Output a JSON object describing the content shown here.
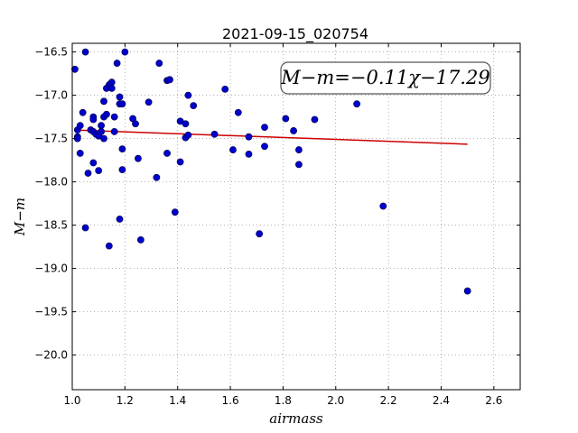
{
  "chart_data": {
    "type": "scatter",
    "title": "2021-09-15_020754",
    "xlabel": "airmass",
    "ylabel": "M−m",
    "annotation": "M−m=−0.11χ−17.29",
    "xlim": [
      1.0,
      2.7
    ],
    "ylim": [
      -20.4,
      -16.4
    ],
    "x_ticks": [
      1.0,
      1.2,
      1.4,
      1.6,
      1.8,
      2.0,
      2.2,
      2.4,
      2.6
    ],
    "x_tick_labels": [
      "1.0",
      "1.2",
      "1.4",
      "1.6",
      "1.8",
      "2.0",
      "2.2",
      "2.4",
      "2.6"
    ],
    "y_ticks": [
      -16.5,
      -17.0,
      -17.5,
      -18.0,
      -18.5,
      -19.0,
      -19.5,
      -20.0
    ],
    "y_tick_labels": [
      "−16.5",
      "−17.0",
      "−17.5",
      "−18.0",
      "−18.5",
      "−19.0",
      "−19.5",
      "−20.0"
    ],
    "grid": true,
    "point_color": "#0000cc",
    "fit_color": "#cc0000",
    "fit": {
      "slope": -0.11,
      "intercept": -17.29,
      "x_range": [
        1.02,
        2.5
      ]
    },
    "points": [
      [
        1.02,
        -17.4
      ],
      [
        1.02,
        -17.48
      ],
      [
        1.01,
        -16.7
      ],
      [
        1.03,
        -17.35
      ],
      [
        1.04,
        -17.2
      ],
      [
        1.05,
        -16.5
      ],
      [
        1.02,
        -17.5
      ],
      [
        1.03,
        -17.67
      ],
      [
        1.05,
        -18.53
      ],
      [
        1.06,
        -17.9
      ],
      [
        1.07,
        -17.4
      ],
      [
        1.08,
        -17.25
      ],
      [
        1.08,
        -17.28
      ],
      [
        1.08,
        -17.42
      ],
      [
        1.09,
        -17.45
      ],
      [
        1.08,
        -17.78
      ],
      [
        1.1,
        -17.87
      ],
      [
        1.1,
        -17.47
      ],
      [
        1.11,
        -17.42
      ],
      [
        1.11,
        -17.35
      ],
      [
        1.12,
        -17.5
      ],
      [
        1.12,
        -17.25
      ],
      [
        1.12,
        -17.07
      ],
      [
        1.13,
        -17.22
      ],
      [
        1.13,
        -16.92
      ],
      [
        1.14,
        -16.88
      ],
      [
        1.15,
        -16.85
      ],
      [
        1.15,
        -16.92
      ],
      [
        1.14,
        -18.74
      ],
      [
        1.16,
        -17.42
      ],
      [
        1.16,
        -17.25
      ],
      [
        1.17,
        -16.63
      ],
      [
        1.18,
        -17.02
      ],
      [
        1.18,
        -17.1
      ],
      [
        1.19,
        -17.1
      ],
      [
        1.19,
        -17.62
      ],
      [
        1.19,
        -17.86
      ],
      [
        1.18,
        -18.43
      ],
      [
        1.2,
        -16.5
      ],
      [
        1.23,
        -17.27
      ],
      [
        1.24,
        -17.33
      ],
      [
        1.25,
        -17.73
      ],
      [
        1.26,
        -18.67
      ],
      [
        1.29,
        -17.08
      ],
      [
        1.32,
        -17.95
      ],
      [
        1.33,
        -16.63
      ],
      [
        1.36,
        -16.83
      ],
      [
        1.37,
        -16.82
      ],
      [
        1.36,
        -17.67
      ],
      [
        1.39,
        -18.35
      ],
      [
        1.41,
        -17.3
      ],
      [
        1.41,
        -17.77
      ],
      [
        1.43,
        -17.33
      ],
      [
        1.43,
        -17.49
      ],
      [
        1.44,
        -17.46
      ],
      [
        1.44,
        -17.0
      ],
      [
        1.46,
        -17.12
      ],
      [
        1.54,
        -17.45
      ],
      [
        1.58,
        -16.93
      ],
      [
        1.61,
        -17.63
      ],
      [
        1.63,
        -17.2
      ],
      [
        1.67,
        -17.48
      ],
      [
        1.67,
        -17.68
      ],
      [
        1.71,
        -18.6
      ],
      [
        1.73,
        -17.37
      ],
      [
        1.73,
        -17.59
      ],
      [
        1.81,
        -17.27
      ],
      [
        1.84,
        -17.41
      ],
      [
        1.86,
        -17.63
      ],
      [
        1.86,
        -17.8
      ],
      [
        1.92,
        -17.28
      ],
      [
        2.08,
        -17.1
      ],
      [
        2.18,
        -18.28
      ],
      [
        2.5,
        -19.26
      ]
    ]
  }
}
